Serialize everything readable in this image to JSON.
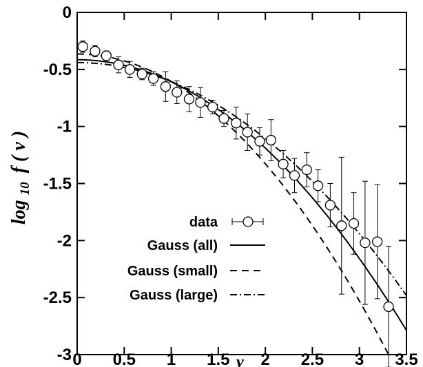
{
  "chart_data": {
    "type": "scatter",
    "xlabel": "v",
    "ylabel_base": "log",
    "ylabel_sub": "10",
    "ylabel_func": "f ( v )",
    "xlim": [
      0,
      3.5
    ],
    "ylim": [
      -3,
      0
    ],
    "grid": false,
    "legend_position": "bottom-center",
    "x_ticks": [
      {
        "value": 0,
        "label": "0"
      },
      {
        "value": 0.5,
        "label": "0.5"
      },
      {
        "value": 1,
        "label": "1"
      },
      {
        "value": 1.5,
        "label": "1.5"
      },
      {
        "value": 2,
        "label": "2"
      },
      {
        "value": 2.5,
        "label": "2.5"
      },
      {
        "value": 3,
        "label": "3"
      },
      {
        "value": 3.5,
        "label": "3.5"
      }
    ],
    "y_ticks": [
      {
        "value": 0,
        "label": "0"
      },
      {
        "value": -0.5,
        "label": "-0.5"
      },
      {
        "value": -1,
        "label": "-1"
      },
      {
        "value": -1.5,
        "label": "-1.5"
      },
      {
        "value": -2,
        "label": "-2"
      },
      {
        "value": -2.5,
        "label": "-2.5"
      },
      {
        "value": -3,
        "label": "-3"
      }
    ],
    "data_series": {
      "name": "data",
      "x": [
        0.06,
        0.19,
        0.31,
        0.44,
        0.56,
        0.69,
        0.81,
        0.94,
        1.06,
        1.19,
        1.31,
        1.44,
        1.56,
        1.69,
        1.81,
        1.94,
        2.06,
        2.19,
        2.31,
        2.44,
        2.56,
        2.69,
        2.81,
        2.94,
        3.06,
        3.19,
        3.31
      ],
      "y": [
        -0.3,
        -0.34,
        -0.38,
        -0.46,
        -0.5,
        -0.54,
        -0.58,
        -0.65,
        -0.7,
        -0.76,
        -0.79,
        -0.83,
        -0.93,
        -0.97,
        -1.05,
        -1.13,
        -1.12,
        -1.33,
        -1.43,
        -1.38,
        -1.52,
        -1.69,
        -1.87,
        -1.85,
        -2.02,
        -2.01,
        -2.58
      ],
      "err": [
        0.05,
        0.05,
        0.04,
        0.07,
        0.07,
        0.05,
        0.06,
        0.13,
        0.1,
        0.11,
        0.13,
        0.06,
        0.07,
        0.14,
        0.16,
        0.12,
        0.18,
        0.12,
        0.15,
        0.15,
        0.14,
        0.19,
        0.6,
        0.27,
        0.54,
        0.5,
        0.53
      ]
    },
    "curves": [
      {
        "name": "Gauss (all)",
        "style": "solid",
        "y0": -0.415,
        "k": 0.1937
      },
      {
        "name": "Gauss (small)",
        "style": "dashed",
        "y0": -0.365,
        "k": 0.2406
      },
      {
        "name": "Gauss (large)",
        "style": "dashdot",
        "y0": -0.44,
        "k": 0.1667
      }
    ]
  }
}
